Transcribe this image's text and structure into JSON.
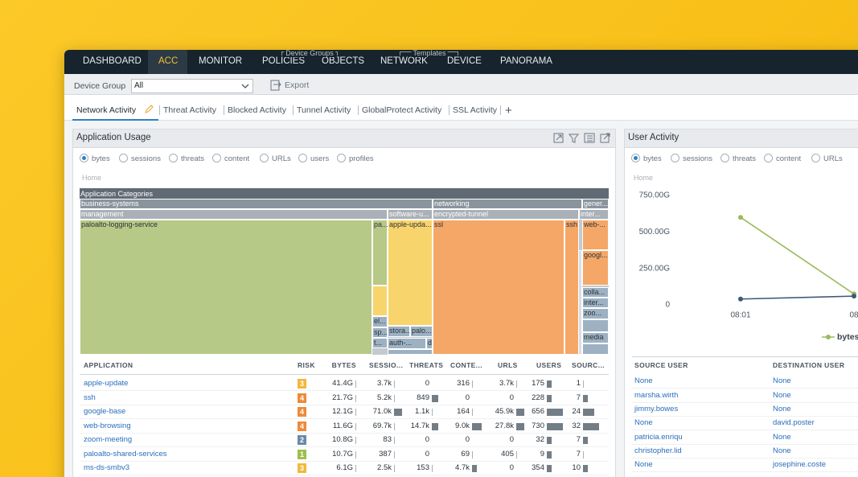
{
  "nav": {
    "items": [
      "DASHBOARD",
      "ACC",
      "MONITOR",
      "POLICIES",
      "OBJECTS",
      "NETWORK",
      "DEVICE",
      "PANORAMA"
    ],
    "group_labels": [
      "Device Groups",
      "Templates"
    ]
  },
  "toolbar": {
    "device_group_label": "Device Group",
    "device_group_value": "All",
    "export": "Export"
  },
  "tabs": [
    "Network Activity",
    "Threat Activity",
    "Blocked Activity",
    "Tunnel Activity",
    "GlobalProtect Activity",
    "SSL Activity",
    "+"
  ],
  "application_usage": {
    "title": "Application Usage",
    "radios": [
      "bytes",
      "sessions",
      "threats",
      "content",
      "URLs",
      "users",
      "profiles"
    ],
    "breadcrumb": "Home",
    "treemap": {
      "title": "Application Categories",
      "cells": [
        "business-systems",
        "networking",
        "gener...",
        "management",
        "software-u...",
        "encrypted-tunnel",
        "inter...",
        "paloalto-logging-service",
        "pa...",
        "apple-upda...",
        "ssl",
        "ssh",
        "web-...",
        "googl...",
        "colla...",
        "inter...",
        "zoo...",
        "media",
        "el...",
        "sp...",
        "t...",
        "stora...",
        "palo...",
        "auth-...",
        "d"
      ]
    },
    "table": {
      "columns": [
        "APPLICATION",
        "RISK",
        "BYTES",
        "SESSIO...",
        "THREATS",
        "CONTE...",
        "URLS",
        "USERS",
        "SOURC..."
      ],
      "rows": [
        [
          "apple-update",
          3,
          "41.4G",
          "3.7k",
          0,
          316,
          "3.7k",
          175,
          1
        ],
        [
          "ssh",
          4,
          "21.7G",
          "5.2k",
          849,
          0,
          0,
          228,
          7
        ],
        [
          "google-base",
          4,
          "12.1G",
          "71.0k",
          "1.1k",
          164,
          "45.9k",
          656,
          24
        ],
        [
          "web-browsing",
          4,
          "11.6G",
          "69.7k",
          "14.7k",
          "9.0k",
          "27.8k",
          730,
          32
        ],
        [
          "zoom-meeting",
          2,
          "10.8G",
          83,
          0,
          0,
          0,
          32,
          7
        ],
        [
          "paloalto-shared-services",
          1,
          "10.7G",
          387,
          0,
          69,
          405,
          9,
          7
        ],
        [
          "ms-ds-smbv3",
          3,
          "6.1G",
          "2.5k",
          153,
          "4.7k",
          0,
          354,
          10
        ]
      ]
    }
  },
  "user_activity": {
    "title": "User Activity",
    "radios": [
      "bytes",
      "sessions",
      "threats",
      "content",
      "URLs"
    ],
    "breadcrumb": "Home",
    "chart_data": {
      "type": "line",
      "categories": [
        "08:01",
        "08"
      ],
      "series": [
        {
          "name": "bytes",
          "color": "#9cba5a",
          "values": [
            600,
            75
          ]
        },
        {
          "color": "#3d5a78",
          "values": [
            40,
            60
          ]
        }
      ],
      "ylim": [
        0,
        750
      ],
      "yticks": [
        0,
        {
          "value": 250,
          "label": "250.00G"
        },
        {
          "value": 500,
          "label": "500.00G"
        },
        {
          "value": 750,
          "label": "750.00G"
        }
      ],
      "legend": "bottom-right"
    },
    "table": {
      "columns": [
        "SOURCE USER",
        "DESTINATION USER"
      ],
      "rows": [
        [
          "None",
          "None"
        ],
        [
          "marsha.wirth",
          "None"
        ],
        [
          "jimmy.bowes",
          "None"
        ],
        [
          "None",
          "david.poster"
        ],
        [
          "patricia.enriqu",
          "None"
        ],
        [
          "christopher.lid",
          "None"
        ],
        [
          "None",
          "josephine.coste"
        ]
      ]
    }
  }
}
